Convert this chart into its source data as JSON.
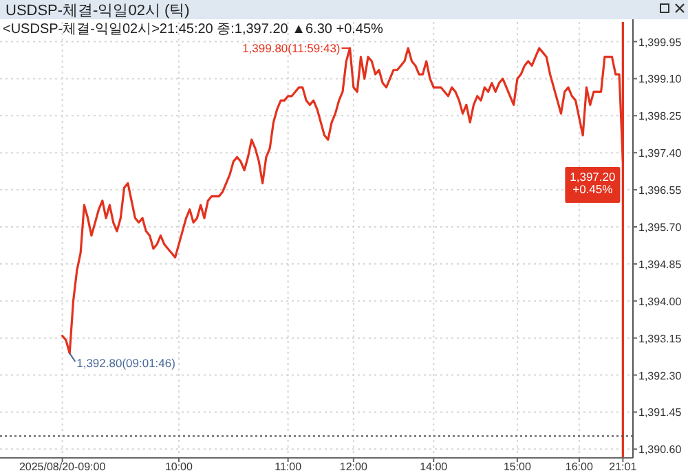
{
  "chart_data": {
    "type": "line",
    "title": "USDSP-체결-익일02시 (틱)",
    "subtitle": "<USDSP-체결-익일02시>21:45:20 종:1,397.20 ▲6.30 +0.45%",
    "color": "#e3321e",
    "categories": [
      "2025/08/20-09:00",
      null,
      null,
      null,
      null,
      null,
      null,
      null,
      null,
      null,
      null,
      null,
      null,
      null,
      null,
      null,
      null,
      null,
      null,
      null,
      null,
      null,
      null,
      null,
      null,
      null,
      null,
      null,
      null,
      null,
      null,
      null,
      "10:00",
      null,
      null,
      null,
      null,
      null,
      null,
      null,
      null,
      null,
      null,
      null,
      null,
      null,
      null,
      null,
      null,
      null,
      null,
      null,
      null,
      null,
      null,
      null,
      null,
      null,
      null,
      null,
      null,
      null,
      "11:00",
      null,
      null,
      null,
      null,
      null,
      null,
      null,
      null,
      null,
      null,
      null,
      null,
      null,
      null,
      null,
      null,
      null,
      "12:00",
      null,
      null,
      null,
      null,
      null,
      null,
      null,
      null,
      null,
      null,
      null,
      null,
      null,
      null,
      null,
      null,
      null,
      null,
      null,
      null,
      null,
      "14:00",
      null,
      null,
      null,
      null,
      null,
      null,
      null,
      null,
      null,
      null,
      null,
      null,
      null,
      null,
      null,
      null,
      null,
      null,
      null,
      null,
      null,
      null,
      "15:00",
      null,
      null,
      null,
      null,
      null,
      null,
      null,
      null,
      null,
      null,
      null,
      null,
      null,
      null,
      null,
      null,
      "16:00",
      null,
      null,
      null,
      null,
      null,
      null,
      null,
      null,
      null,
      null,
      null,
      "21:01"
    ],
    "values": [
      1393.2,
      1393.1,
      1392.8,
      1394.0,
      1394.7,
      1395.1,
      1396.2,
      1395.9,
      1395.5,
      1395.8,
      1396.1,
      1396.3,
      1395.9,
      1396.2,
      1395.8,
      1395.6,
      1395.9,
      1396.6,
      1396.7,
      1396.3,
      1395.9,
      1395.8,
      1395.9,
      1395.6,
      1395.5,
      1395.2,
      1395.3,
      1395.5,
      1395.3,
      1395.2,
      1395.1,
      1395.0,
      1395.3,
      1395.6,
      1395.9,
      1396.1,
      1395.8,
      1395.9,
      1396.2,
      1395.9,
      1396.3,
      1396.4,
      1396.4,
      1396.4,
      1396.5,
      1396.7,
      1396.9,
      1397.2,
      1397.3,
      1397.2,
      1397.0,
      1397.3,
      1397.7,
      1397.5,
      1397.2,
      1396.7,
      1397.3,
      1397.5,
      1398.1,
      1398.4,
      1398.6,
      1398.6,
      1398.7,
      1398.7,
      1398.8,
      1398.9,
      1398.9,
      1398.6,
      1398.5,
      1398.6,
      1398.4,
      1398.1,
      1397.8,
      1397.7,
      1398.1,
      1398.3,
      1398.6,
      1398.8,
      1399.5,
      1399.8,
      1398.9,
      1398.8,
      1399.6,
      1399.1,
      1399.6,
      1399.5,
      1399.2,
      1399.3,
      1399.0,
      1398.9,
      1399.1,
      1399.3,
      1399.3,
      1399.4,
      1399.5,
      1399.8,
      1399.5,
      1399.4,
      1399.2,
      1399.2,
      1399.5,
      1399.1,
      1398.9,
      1398.9,
      1398.9,
      1398.8,
      1398.7,
      1398.9,
      1398.8,
      1398.6,
      1398.3,
      1398.5,
      1398.1,
      1398.5,
      1398.7,
      1398.6,
      1398.9,
      1398.8,
      1399.0,
      1398.8,
      1399.0,
      1399.1,
      1398.9,
      1398.7,
      1398.5,
      1399.1,
      1399.2,
      1399.4,
      1399.5,
      1399.4,
      1399.6,
      1399.8,
      1399.7,
      1399.6,
      1399.2,
      1398.9,
      1398.6,
      1398.3,
      1398.8,
      1398.9,
      1398.7,
      1398.6,
      1398.2,
      1397.8,
      1398.9,
      1398.5,
      1398.8,
      1398.8,
      1398.8,
      1399.6,
      1399.6,
      1399.6,
      1399.2,
      1399.2,
      1397.2
    ],
    "ylim": [
      1390.4,
      1400.4
    ],
    "yticks": [
      {
        "value": 1390.6,
        "label": "1,390.60"
      },
      {
        "value": 1391.45,
        "label": "1,391.45"
      },
      {
        "value": 1392.3,
        "label": "1,392.30"
      },
      {
        "value": 1393.15,
        "label": "1,393.15"
      },
      {
        "value": 1394.0,
        "label": "1,394.00"
      },
      {
        "value": 1394.85,
        "label": "1,394.85"
      },
      {
        "value": 1395.7,
        "label": "1,395.70"
      },
      {
        "value": 1396.55,
        "label": "1,396.55"
      },
      {
        "value": 1397.4,
        "label": "1,397.40"
      },
      {
        "value": 1398.25,
        "label": "1,398.25"
      },
      {
        "value": 1399.1,
        "label": "1,399.10"
      },
      {
        "value": 1399.95,
        "label": "1,399.95"
      }
    ],
    "grid": true,
    "annotations": [
      "1,399.80(11:59:43)",
      "1,392.80(09:01:46)",
      {
        "text": "1,397.20 +0.45%",
        "x": "21:01",
        "y": 1397.2
      }
    ],
    "ref_lines": [
      {
        "axis": "x",
        "value": "21:01",
        "color": "#e3321e",
        "line_style": "solid"
      },
      {
        "axis": "y",
        "value": 1390.9,
        "color": "#505050",
        "line_style": "dotted"
      }
    ]
  }
}
